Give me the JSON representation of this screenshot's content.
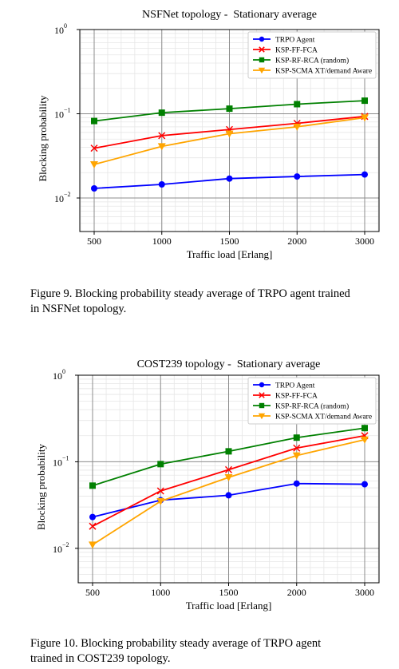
{
  "chart_data": [
    {
      "type": "line",
      "title": "NSFNet topology -  Stationary average",
      "x_label": "Traffic load [Erlang]",
      "y_label": "Blocking probability",
      "categories": [
        "500",
        "1000",
        "1500",
        "2000",
        "3000"
      ],
      "log_y": true,
      "grid": true,
      "legend": "upper right",
      "ylim": [
        0.004,
        1
      ],
      "yticks": [
        {
          "value": 0.01,
          "label": "10",
          "exp": "−2"
        },
        {
          "value": 0.1,
          "label": "10",
          "exp": "−1"
        },
        {
          "value": 1,
          "label": "10",
          "exp": "0"
        }
      ],
      "series": [
        {
          "name": "TRPO Agent",
          "color": "#0000ff",
          "marker": "circle",
          "values": [
            0.013,
            0.0145,
            0.017,
            0.018,
            0.019
          ]
        },
        {
          "name": "KSP-FF-FCA",
          "color": "#ff0000",
          "marker": "x",
          "values": [
            0.039,
            0.055,
            0.065,
            0.077,
            0.093
          ]
        },
        {
          "name": "KSP-RF-RCA (random)",
          "color": "#008000",
          "marker": "square",
          "values": [
            0.082,
            0.103,
            0.115,
            0.13,
            0.143
          ]
        },
        {
          "name": "KSP-SCMA XT/demand Aware",
          "color": "#ffa500",
          "marker": "triangle_down",
          "values": [
            0.025,
            0.041,
            0.058,
            0.07,
            0.09
          ]
        }
      ]
    },
    {
      "type": "line",
      "title": "COST239 topology -  Stationary average",
      "x_label": "Traffic load [Erlang]",
      "y_label": "Blocking probability",
      "categories": [
        "500",
        "1000",
        "1500",
        "2000",
        "3000"
      ],
      "log_y": true,
      "grid": true,
      "legend": "upper right",
      "ylim": [
        0.004,
        1
      ],
      "yticks": [
        {
          "value": 0.01,
          "label": "10",
          "exp": "−2"
        },
        {
          "value": 0.1,
          "label": "10",
          "exp": "−1"
        },
        {
          "value": 1,
          "label": "10",
          "exp": "0"
        }
      ],
      "series": [
        {
          "name": "TRPO Agent",
          "color": "#0000ff",
          "marker": "circle",
          "values": [
            0.023,
            0.036,
            0.041,
            0.056,
            0.055
          ]
        },
        {
          "name": "KSP-FF-FCA",
          "color": "#ff0000",
          "marker": "x",
          "values": [
            0.018,
            0.046,
            0.081,
            0.144,
            0.2
          ]
        },
        {
          "name": "KSP-RF-RCA (random)",
          "color": "#008000",
          "marker": "square",
          "values": [
            0.053,
            0.094,
            0.132,
            0.19,
            0.245
          ]
        },
        {
          "name": "KSP-SCMA XT/demand Aware",
          "color": "#ffa500",
          "marker": "triangle_down",
          "values": [
            0.011,
            0.035,
            0.066,
            0.118,
            0.18
          ]
        }
      ]
    }
  ],
  "captions": [
    [
      "Figure 9. Blocking probability steady average of TRPO agent trained",
      "in NSFNet topology."
    ],
    [
      "Figure 10. Blocking probability steady average of TRPO agent",
      "trained in COST239 topology."
    ]
  ]
}
